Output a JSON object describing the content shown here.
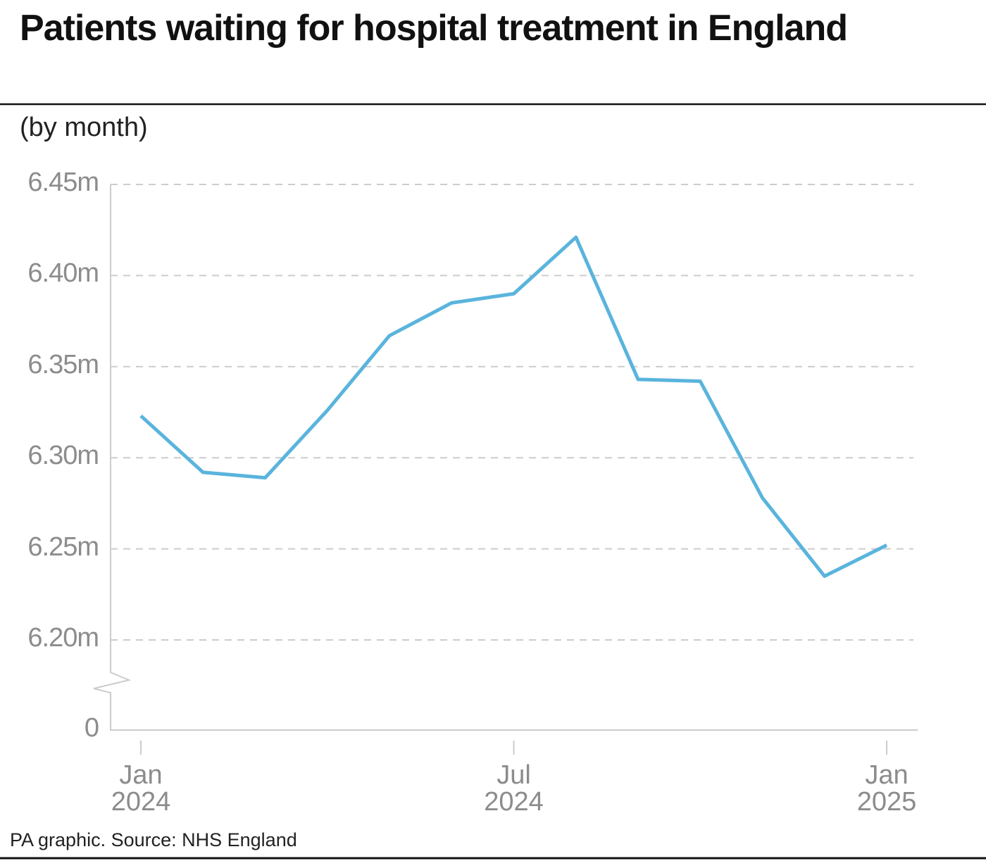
{
  "chart_data": {
    "type": "line",
    "title": "Patients waiting for hospital treatment in England",
    "subtitle": "(by month)",
    "source": "PA graphic. Source: NHS England",
    "categories": [
      "Jan 2024",
      null,
      null,
      null,
      null,
      null,
      "Jul 2024",
      null,
      null,
      null,
      null,
      null,
      "Jan 2025"
    ],
    "values": [
      6.323,
      6.292,
      6.289,
      6.326,
      6.367,
      6.385,
      6.39,
      6.421,
      6.343,
      6.342,
      6.278,
      6.235,
      6.252
    ],
    "color": "#5ab4dc",
    "ylim": [
      0,
      6.45
    ],
    "y_break": true,
    "yticks": [
      0,
      {
        "value": 6.2,
        "label": "6.20m"
      },
      {
        "value": 6.25,
        "label": "6.25m"
      },
      {
        "value": 6.3,
        "label": "6.30m"
      },
      {
        "value": 6.35,
        "label": "6.35m"
      },
      {
        "value": 6.4,
        "label": "6.40m"
      },
      {
        "value": 6.45,
        "label": "6.45m"
      }
    ],
    "grid": true
  }
}
